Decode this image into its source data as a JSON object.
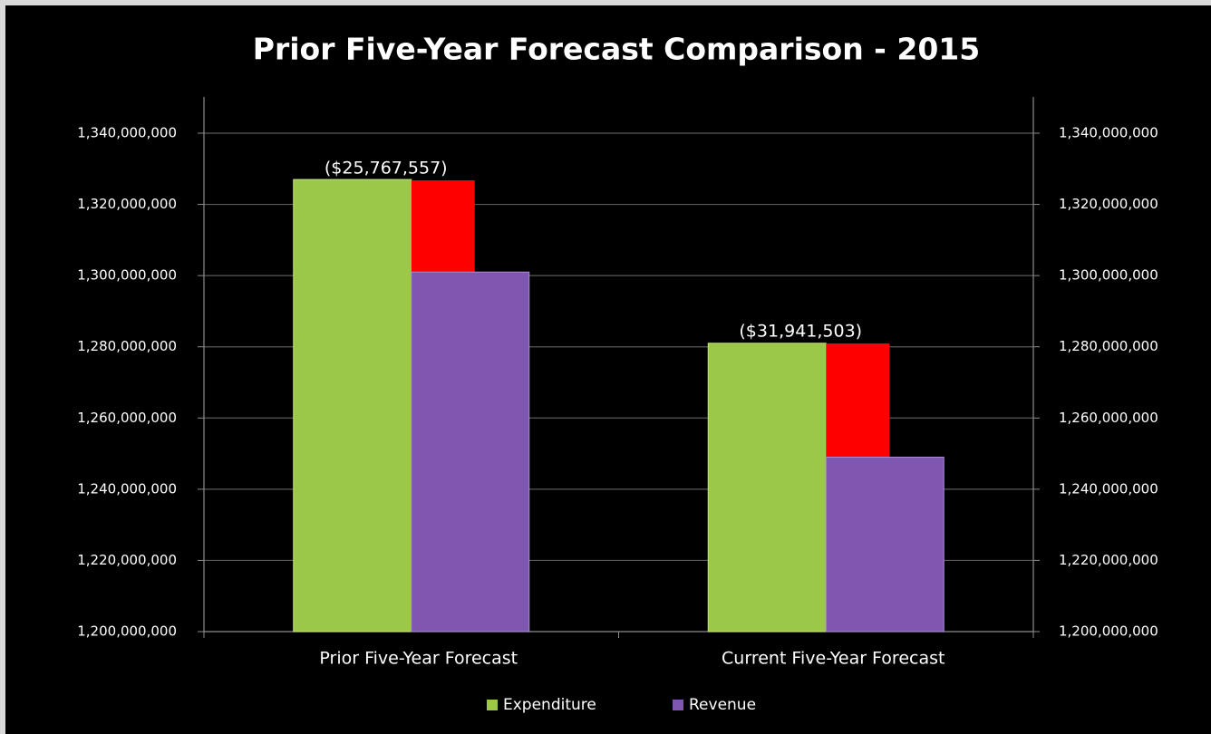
{
  "chart_data": {
    "type": "bar",
    "title": "Prior Five-Year Forecast Comparison - 2015",
    "categories": [
      "Prior Five-Year Forecast",
      "Current Five-Year Forecast"
    ],
    "series": [
      {
        "name": "Expenditure",
        "color": "#9cc84a",
        "values": [
          1327000000,
          1281000000
        ]
      },
      {
        "name": "Revenue",
        "color": "#8057b0",
        "values": [
          1301000000,
          1249000000
        ]
      }
    ],
    "deficits": {
      "color": "#ff0000",
      "values": [
        -25767557,
        -31941503
      ],
      "value_labels": [
        "($25,767,557)",
        "($31,941,503)"
      ]
    },
    "ylim": [
      1200000000,
      1340000000
    ],
    "yticks": [
      {
        "value": 1200000000,
        "label": "1,200,000,000"
      },
      {
        "value": 1220000000,
        "label": "1,220,000,000"
      },
      {
        "value": 1240000000,
        "label": "1,240,000,000"
      },
      {
        "value": 1260000000,
        "label": "1,260,000,000"
      },
      {
        "value": 1280000000,
        "label": "1,280,000,000"
      },
      {
        "value": 1300000000,
        "label": "1,300,000,000"
      },
      {
        "value": 1320000000,
        "label": "1,320,000,000"
      },
      {
        "value": 1340000000,
        "label": "1,340,000,000"
      }
    ],
    "y2lim": [
      1200000000,
      1340000000
    ],
    "y2ticks": [
      {
        "value": 1200000000,
        "label": "1,200,000,000"
      },
      {
        "value": 1220000000,
        "label": "1,220,000,000"
      },
      {
        "value": 1240000000,
        "label": "1,240,000,000"
      },
      {
        "value": 1260000000,
        "label": "1,260,000,000"
      },
      {
        "value": 1280000000,
        "label": "1,280,000,000"
      },
      {
        "value": 1300000000,
        "label": "1,300,000,000"
      },
      {
        "value": 1320000000,
        "label": "1,320,000,000"
      },
      {
        "value": 1340000000,
        "label": "1,340,000,000"
      }
    ],
    "grid": true,
    "legend": "bottom"
  }
}
